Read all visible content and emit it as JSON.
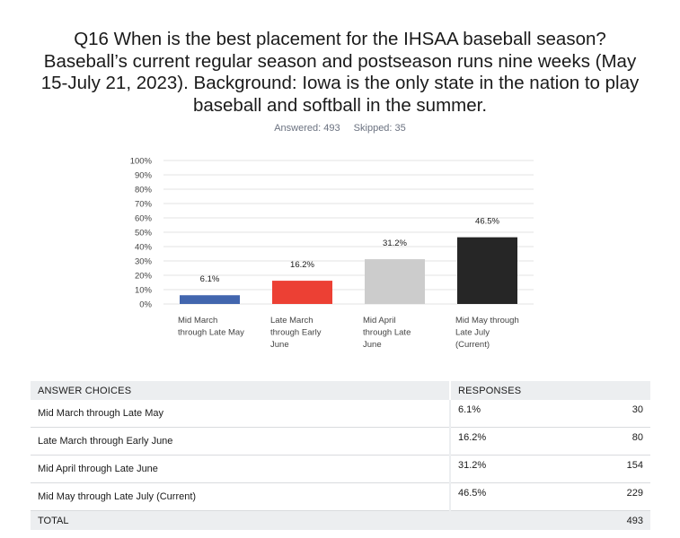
{
  "question": {
    "lines": [
      "Q16 When is the best placement for the IHSAA baseball season?",
      "Baseball’s current regular season and postseason runs nine weeks (May",
      "15-July 21, 2023). Background: Iowa is the only state in the nation to play",
      "baseball and softball in the summer."
    ]
  },
  "stats": {
    "answered": "Answered: 493",
    "skipped": "Skipped: 35"
  },
  "chart_data": {
    "type": "bar",
    "categories": [
      [
        "Mid March",
        "through Late May"
      ],
      [
        "Late March",
        "through Early",
        "June"
      ],
      [
        "Mid April",
        "through Late",
        "June"
      ],
      [
        "Mid May through",
        "Late July",
        "(Current)"
      ]
    ],
    "values": [
      6.1,
      16.2,
      31.2,
      46.5
    ],
    "value_labels": [
      "6.1%",
      "16.2%",
      "31.2%",
      "46.5%"
    ],
    "colors": [
      "#4266ae",
      "#ec4034",
      "#cccccc",
      "#262626"
    ],
    "ylim": [
      0,
      100
    ],
    "yticks": [
      0,
      10,
      20,
      30,
      40,
      50,
      60,
      70,
      80,
      90,
      100
    ],
    "ytick_labels": [
      "0%",
      "10%",
      "20%",
      "30%",
      "40%",
      "50%",
      "60%",
      "70%",
      "80%",
      "90%",
      "100%"
    ],
    "grid": true
  },
  "table": {
    "header": {
      "choices": "ANSWER CHOICES",
      "responses": "RESPONSES"
    },
    "rows": [
      {
        "choice": "Mid March through Late May",
        "pct": "6.1%",
        "count": "30"
      },
      {
        "choice": "Late March through Early June",
        "pct": "16.2%",
        "count": "80"
      },
      {
        "choice": "Mid April through Late June",
        "pct": "31.2%",
        "count": "154"
      },
      {
        "choice": "Mid May through Late July (Current)",
        "pct": "46.5%",
        "count": "229"
      }
    ],
    "total": {
      "label": "TOTAL",
      "count": "493"
    }
  }
}
